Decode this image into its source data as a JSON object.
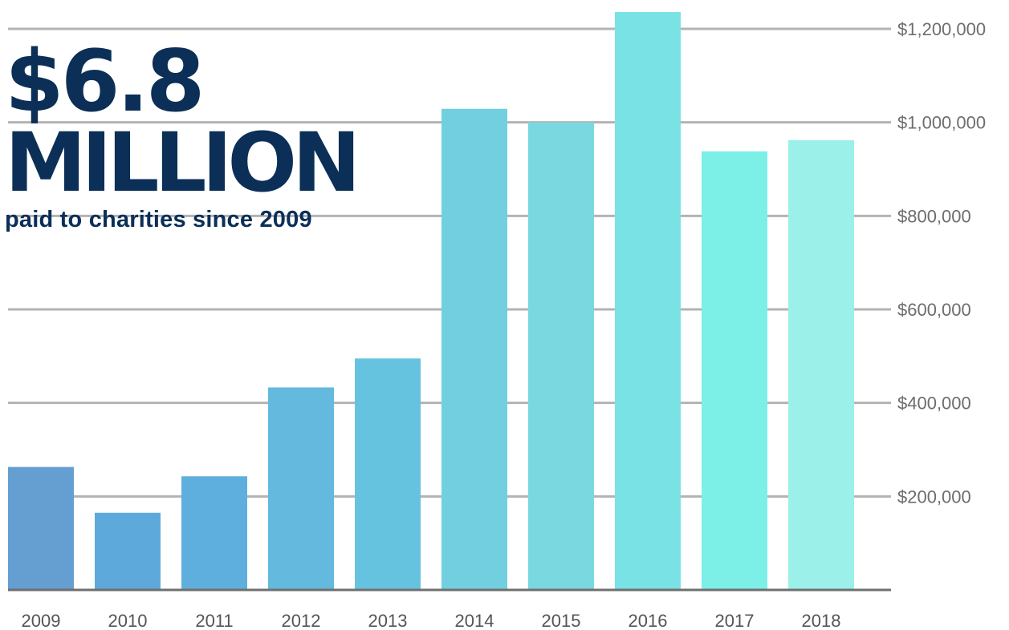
{
  "headline": {
    "value": "$6.8",
    "unit": "MILLION",
    "subtitle": "paid to charities since 2009"
  },
  "colors": {
    "headline": "#0b2f57",
    "grid": "#b3b3b3",
    "axis": "#6f6f6f",
    "bars": [
      "#659fd2",
      "#5ea9db",
      "#5eafdd",
      "#63b9de",
      "#66c3df",
      "#72cfe0",
      "#7ad8e0",
      "#79e2e5",
      "#7cefe7",
      "#9cf0ea"
    ]
  },
  "chart_data": {
    "type": "bar",
    "categories": [
      "2009",
      "2010",
      "2011",
      "2012",
      "2013",
      "2014",
      "2015",
      "2016",
      "2017",
      "2018"
    ],
    "values": [
      263000,
      165000,
      243000,
      433000,
      495000,
      1029000,
      1000000,
      1236000,
      938000,
      962000
    ],
    "ylim": [
      0,
      1200000
    ],
    "yticks": [
      200000,
      400000,
      600000,
      800000,
      1000000,
      1200000
    ],
    "ytick_labels": [
      "$200,000",
      "$400,000",
      "$600,000",
      "$800,000",
      "$1,000,000",
      "$1,200,000"
    ],
    "grid": true,
    "xlabel": "",
    "ylabel": ""
  }
}
